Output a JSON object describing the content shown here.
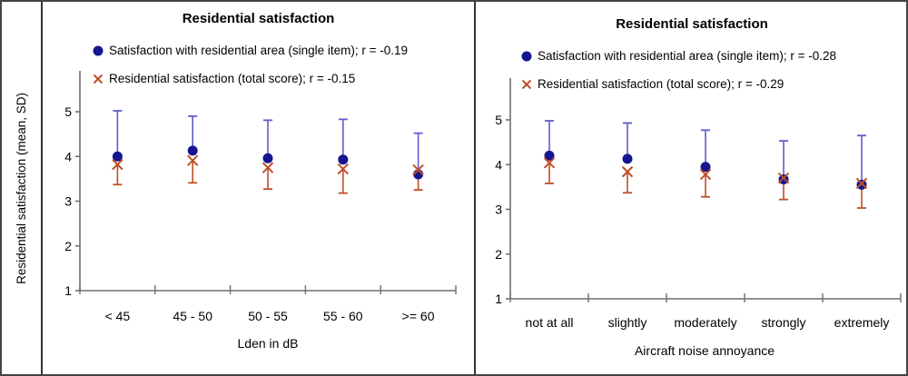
{
  "figure": {
    "y_axis_title": "Residential satisfaction (mean, SD)",
    "colors": {
      "marker_blue": "#15158f",
      "whisker_blue": "#5d5dcb",
      "marker_red": "#bf4f27",
      "whisker_red": "#bf4f27",
      "axis": "#6e6e6e",
      "text": "#000000"
    }
  },
  "chart_data": [
    {
      "type": "scatter",
      "panel": "left",
      "title": "Residential satisfaction",
      "xlabel": "Lden in dB",
      "ylabel": "Residential satisfaction (mean, SD)",
      "ylim": [
        1,
        5
      ],
      "yticks": [
        1,
        2,
        3,
        4,
        5
      ],
      "grid": false,
      "legend_position": "top",
      "categories": [
        "< 45",
        "45 - 50",
        "50 - 55",
        "55 - 60",
        ">= 60"
      ],
      "series": [
        {
          "name": "Satisfaction with residential area (single item); r = -0.19",
          "r": -0.19,
          "marker": "circle",
          "whisker_direction": "up",
          "means": [
            4.0,
            4.13,
            3.96,
            3.93,
            3.6
          ],
          "whisker_end": [
            5.02,
            4.9,
            4.81,
            4.83,
            4.52
          ]
        },
        {
          "name": "Residential satisfaction (total score); r = -0.15",
          "r": -0.15,
          "marker": "x",
          "whisker_direction": "down",
          "means": [
            3.82,
            3.91,
            3.75,
            3.72,
            3.7
          ],
          "whisker_end": [
            3.37,
            3.41,
            3.27,
            3.18,
            3.25
          ]
        }
      ]
    },
    {
      "type": "scatter",
      "panel": "right",
      "title": "Residential satisfaction",
      "xlabel": "Aircraft noise annoyance",
      "ylabel": "Residential satisfaction (mean, SD)",
      "ylim": [
        1,
        5
      ],
      "yticks": [
        1,
        2,
        3,
        4,
        5
      ],
      "grid": false,
      "legend_position": "top",
      "categories": [
        "not at all",
        "slightly",
        "moderately",
        "strongly",
        "extremely"
      ],
      "series": [
        {
          "name": "Satisfaction with residential area (single item); r = -0.28",
          "r": -0.28,
          "marker": "circle",
          "whisker_direction": "up",
          "means": [
            4.2,
            4.13,
            3.95,
            3.67,
            3.55
          ],
          "whisker_end": [
            4.98,
            4.93,
            4.77,
            4.53,
            4.65
          ]
        },
        {
          "name": "Residential satisfaction (total score); r = -0.29",
          "r": -0.29,
          "marker": "x",
          "whisker_direction": "down",
          "means": [
            4.04,
            3.84,
            3.78,
            3.7,
            3.58
          ],
          "whisker_end": [
            3.58,
            3.37,
            3.28,
            3.22,
            3.03
          ]
        }
      ]
    }
  ]
}
